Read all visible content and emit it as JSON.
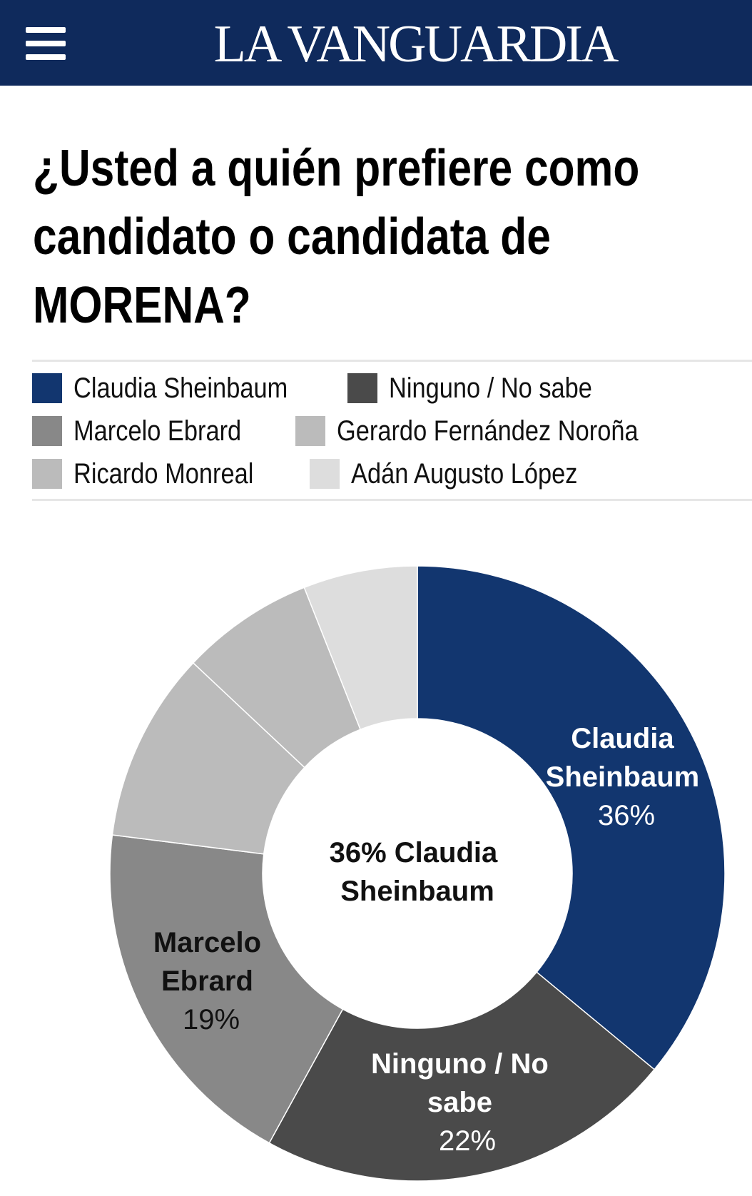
{
  "header": {
    "logo": "LA VANGUARDIA",
    "menu_icon": "hamburger-icon",
    "background": "#0f2a5c"
  },
  "chart_data": {
    "type": "pie",
    "variant": "donut",
    "title": [
      "¿Usted a quién prefiere como",
      "candidato o candidata de",
      "MORENA?"
    ],
    "legend_position": "top",
    "center_label": [
      "36% Claudia",
      "Sheinbaum"
    ],
    "slices": [
      {
        "name": "Claudia Sheinbaum",
        "value": 36,
        "color": "#12366f",
        "label": [
          "Claudia",
          "Sheinbaum"
        ],
        "value_label": "36%",
        "label_color": "#ffffff"
      },
      {
        "name": "Ninguno / No sabe",
        "value": 22,
        "color": "#4a4a4a",
        "label": [
          "Ninguno / No",
          "sabe"
        ],
        "value_label": "22%",
        "label_color": "#ffffff"
      },
      {
        "name": "Marcelo Ebrard",
        "value": 19,
        "color": "#888888",
        "label": [
          "Marcelo",
          "Ebrard"
        ],
        "value_label": "19%",
        "label_color": "#111111"
      },
      {
        "name": "Gerardo Fernández Noroña",
        "value": 10,
        "color": "#bbbbbb"
      },
      {
        "name": "Ricardo Monreal",
        "value": 7,
        "color": "#bbbbbb"
      },
      {
        "name": "Adán Augusto López",
        "value": 6,
        "color": "#dddddd"
      }
    ]
  }
}
